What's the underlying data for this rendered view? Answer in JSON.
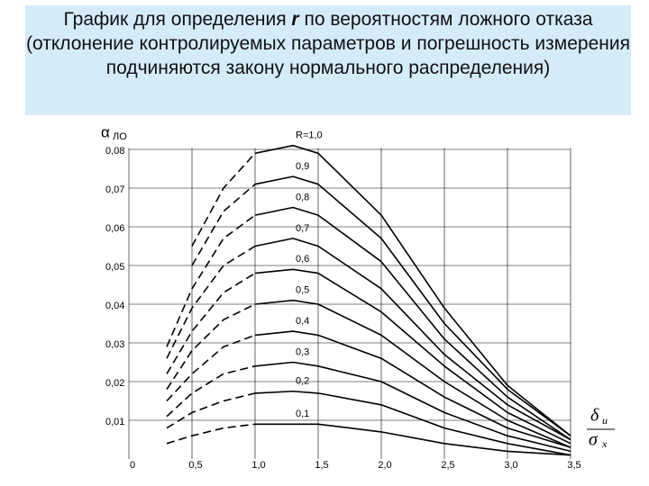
{
  "chart_data": {
    "type": "line",
    "title_parts": [
      "График для определения ",
      "r",
      " по вероятностям ложного отказа (отклонение контролируемых параметров и погрешность измерения подчиняются закону нормального распределения)"
    ],
    "y_label": "α",
    "y_label_sub": "ЛО",
    "x_label_num": "δ",
    "x_label_num_sub": "u",
    "x_label_den": "σ",
    "x_label_den_sub": "x",
    "x": [
      0.3,
      0.5,
      0.75,
      1.0,
      1.3,
      1.5,
      2.0,
      2.5,
      3.0,
      3.5
    ],
    "dashed_until_x": 1.0,
    "color": "#000000",
    "series": [
      {
        "name": "R=1,0",
        "values": [
          null,
          0.055,
          0.07,
          0.079,
          0.081,
          0.079,
          0.063,
          0.039,
          0.019,
          0.006
        ]
      },
      {
        "name": "0,9",
        "values": [
          null,
          0.05,
          0.064,
          0.071,
          0.073,
          0.071,
          0.057,
          0.035,
          0.018,
          0.006
        ]
      },
      {
        "name": "0,8",
        "values": [
          0.029,
          0.044,
          0.057,
          0.063,
          0.065,
          0.063,
          0.051,
          0.031,
          0.016,
          0.005
        ]
      },
      {
        "name": "0,7",
        "values": [
          0.026,
          0.039,
          0.05,
          0.055,
          0.057,
          0.055,
          0.044,
          0.027,
          0.014,
          0.005
        ]
      },
      {
        "name": "0,6",
        "values": [
          0.022,
          0.033,
          0.043,
          0.048,
          0.049,
          0.048,
          0.038,
          0.024,
          0.012,
          0.004
        ]
      },
      {
        "name": "0,5",
        "values": [
          0.018,
          0.028,
          0.036,
          0.04,
          0.041,
          0.04,
          0.032,
          0.02,
          0.01,
          0.003
        ]
      },
      {
        "name": "0,4",
        "values": [
          0.015,
          0.022,
          0.029,
          0.032,
          0.033,
          0.032,
          0.026,
          0.016,
          0.008,
          0.003
        ]
      },
      {
        "name": "0,3",
        "values": [
          0.011,
          0.017,
          0.022,
          0.024,
          0.025,
          0.024,
          0.02,
          0.012,
          0.006,
          0.002
        ]
      },
      {
        "name": "0,2",
        "values": [
          0.008,
          0.012,
          0.015,
          0.017,
          0.0175,
          0.017,
          0.014,
          0.008,
          0.004,
          0.001
        ]
      },
      {
        "name": "0,1",
        "values": [
          0.004,
          0.006,
          0.008,
          0.009,
          0.009,
          0.009,
          0.007,
          0.004,
          0.002,
          0.001
        ]
      }
    ],
    "xlim": [
      0,
      3.5
    ],
    "xticks": [
      0,
      {
        "value": 0.5,
        "label": "0,5"
      },
      {
        "value": 1.0,
        "label": "1,0"
      },
      {
        "value": 1.5,
        "label": "1,5"
      },
      {
        "value": 2.0,
        "label": "2,0"
      },
      {
        "value": 2.5,
        "label": "2,5"
      },
      {
        "value": 3.0,
        "label": "3,0"
      },
      {
        "value": 3.5,
        "label": "3,5"
      }
    ],
    "ylim": [
      0,
      0.085
    ],
    "yticks": [
      {
        "value": 0.01,
        "label": "0,01"
      },
      {
        "value": 0.02,
        "label": "0,02"
      },
      {
        "value": 0.03,
        "label": "0,03"
      },
      {
        "value": 0.04,
        "label": "0,04"
      },
      {
        "value": 0.05,
        "label": "0,05"
      },
      {
        "value": 0.06,
        "label": "0,06"
      },
      {
        "value": 0.07,
        "label": "0,07"
      },
      {
        "value": 0.08,
        "label": "0,08"
      }
    ],
    "grid": true
  }
}
